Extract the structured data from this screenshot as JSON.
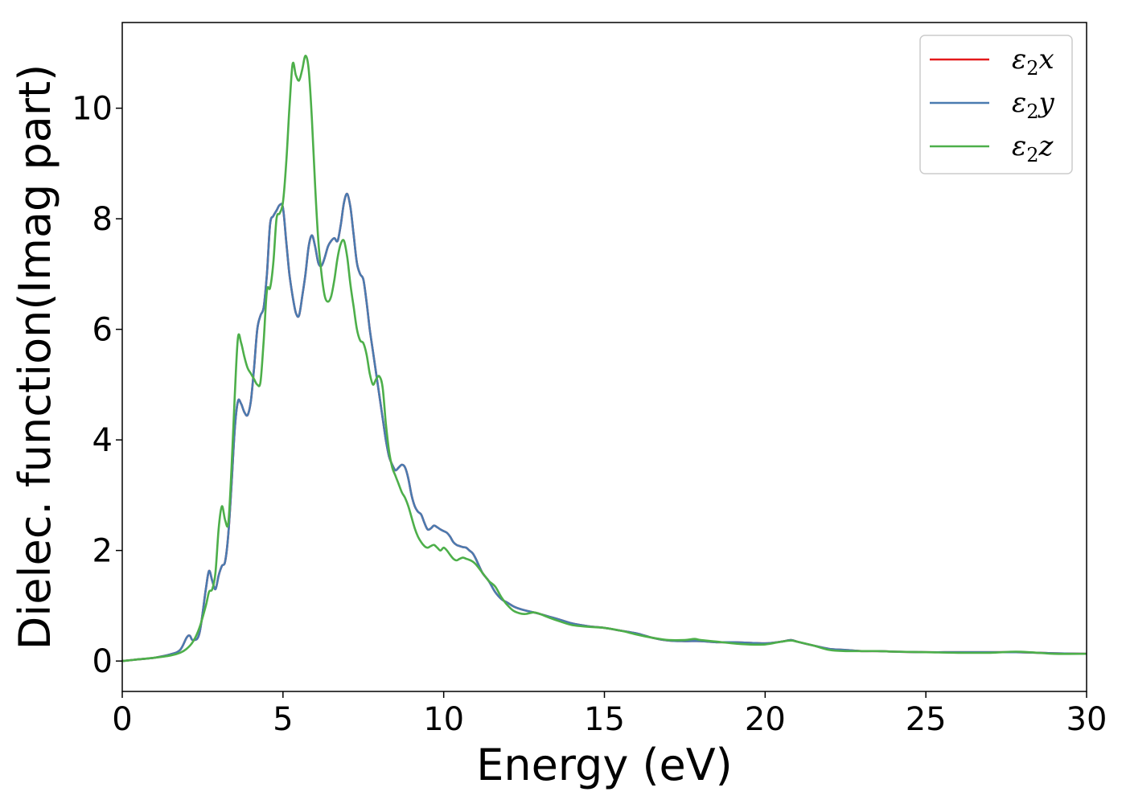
{
  "chart_data": {
    "type": "line",
    "title": "",
    "xlabel": "Energy (eV)",
    "ylabel": "Dielec. function(Imag part)",
    "xlim": [
      0,
      30
    ],
    "ylim": [
      -0.55,
      11.55
    ],
    "xticks": [
      0,
      5,
      10,
      15,
      20,
      25,
      30
    ],
    "yticks": [
      0,
      2,
      4,
      6,
      8,
      10
    ],
    "grid": false,
    "legend_position": "top-right",
    "series": [
      {
        "name": "ε₂x",
        "legend_base": "ε",
        "legend_sub": "2",
        "legend_var": "x",
        "color": "#e41a1c",
        "x": [
          0,
          0.5,
          1.0,
          1.5,
          1.8,
          2.0,
          2.1,
          2.2,
          2.4,
          2.6,
          2.7,
          2.8,
          2.9,
          3.0,
          3.1,
          3.2,
          3.3,
          3.4,
          3.5,
          3.6,
          3.7,
          3.8,
          3.9,
          4.0,
          4.1,
          4.2,
          4.3,
          4.4,
          4.5,
          4.6,
          4.7,
          4.8,
          4.9,
          5.0,
          5.1,
          5.2,
          5.3,
          5.4,
          5.5,
          5.6,
          5.7,
          5.8,
          5.9,
          6.0,
          6.1,
          6.2,
          6.3,
          6.4,
          6.5,
          6.6,
          6.7,
          6.8,
          6.9,
          7.0,
          7.1,
          7.2,
          7.3,
          7.4,
          7.5,
          7.6,
          7.7,
          7.8,
          7.9,
          8.0,
          8.1,
          8.2,
          8.3,
          8.4,
          8.5,
          8.6,
          8.7,
          8.8,
          8.9,
          9.0,
          9.1,
          9.2,
          9.3,
          9.4,
          9.5,
          9.6,
          9.7,
          9.8,
          9.9,
          10.0,
          10.1,
          10.2,
          10.3,
          10.4,
          10.5,
          10.6,
          10.7,
          10.8,
          10.9,
          11.0,
          11.2,
          11.4,
          11.6,
          11.8,
          12.0,
          12.2,
          12.5,
          12.8,
          13.0,
          13.3,
          13.6,
          14.0,
          14.5,
          15.0,
          15.5,
          16.0,
          16.5,
          17.0,
          17.5,
          18.0,
          18.5,
          19.0,
          19.5,
          20.0,
          20.5,
          20.8,
          21.0,
          21.5,
          22.0,
          22.5,
          23.0,
          23.5,
          24.0,
          25.0,
          26.0,
          27.0,
          27.8,
          28.5,
          29.0,
          30.0
        ],
        "values": [
          0,
          0.03,
          0.06,
          0.12,
          0.2,
          0.42,
          0.46,
          0.38,
          0.5,
          1.3,
          1.63,
          1.45,
          1.3,
          1.55,
          1.72,
          1.8,
          2.3,
          3.2,
          4.2,
          4.7,
          4.65,
          4.5,
          4.45,
          4.7,
          5.3,
          6.0,
          6.25,
          6.4,
          7.0,
          7.9,
          8.05,
          8.15,
          8.25,
          8.2,
          7.6,
          7.0,
          6.6,
          6.3,
          6.25,
          6.6,
          7.0,
          7.5,
          7.7,
          7.5,
          7.2,
          7.15,
          7.3,
          7.5,
          7.6,
          7.65,
          7.6,
          7.9,
          8.3,
          8.45,
          8.2,
          7.7,
          7.2,
          7.0,
          6.9,
          6.5,
          6.0,
          5.6,
          5.2,
          4.8,
          4.4,
          4.0,
          3.7,
          3.55,
          3.45,
          3.5,
          3.55,
          3.5,
          3.3,
          3.0,
          2.8,
          2.7,
          2.65,
          2.5,
          2.38,
          2.4,
          2.45,
          2.42,
          2.38,
          2.35,
          2.32,
          2.25,
          2.15,
          2.1,
          2.08,
          2.06,
          2.05,
          2.0,
          1.95,
          1.85,
          1.6,
          1.45,
          1.25,
          1.12,
          1.05,
          0.98,
          0.92,
          0.88,
          0.85,
          0.8,
          0.75,
          0.68,
          0.63,
          0.6,
          0.55,
          0.5,
          0.42,
          0.37,
          0.36,
          0.36,
          0.34,
          0.34,
          0.33,
          0.32,
          0.35,
          0.38,
          0.35,
          0.28,
          0.22,
          0.2,
          0.18,
          0.18,
          0.17,
          0.16,
          0.16,
          0.16,
          0.16,
          0.15,
          0.14,
          0.13
        ]
      },
      {
        "name": "ε₂y",
        "legend_base": "ε",
        "legend_sub": "2",
        "legend_var": "y",
        "color": "#4a7bb0",
        "x": [
          0,
          0.5,
          1.0,
          1.5,
          1.8,
          2.0,
          2.1,
          2.2,
          2.4,
          2.6,
          2.7,
          2.8,
          2.9,
          3.0,
          3.1,
          3.2,
          3.3,
          3.4,
          3.5,
          3.6,
          3.7,
          3.8,
          3.9,
          4.0,
          4.1,
          4.2,
          4.3,
          4.4,
          4.5,
          4.6,
          4.7,
          4.8,
          4.9,
          5.0,
          5.1,
          5.2,
          5.3,
          5.4,
          5.5,
          5.6,
          5.7,
          5.8,
          5.9,
          6.0,
          6.1,
          6.2,
          6.3,
          6.4,
          6.5,
          6.6,
          6.7,
          6.8,
          6.9,
          7.0,
          7.1,
          7.2,
          7.3,
          7.4,
          7.5,
          7.6,
          7.7,
          7.8,
          7.9,
          8.0,
          8.1,
          8.2,
          8.3,
          8.4,
          8.5,
          8.6,
          8.7,
          8.8,
          8.9,
          9.0,
          9.1,
          9.2,
          9.3,
          9.4,
          9.5,
          9.6,
          9.7,
          9.8,
          9.9,
          10.0,
          10.1,
          10.2,
          10.3,
          10.4,
          10.5,
          10.6,
          10.7,
          10.8,
          10.9,
          11.0,
          11.2,
          11.4,
          11.6,
          11.8,
          12.0,
          12.2,
          12.5,
          12.8,
          13.0,
          13.3,
          13.6,
          14.0,
          14.5,
          15.0,
          15.5,
          16.0,
          16.5,
          17.0,
          17.5,
          18.0,
          18.5,
          19.0,
          19.5,
          20.0,
          20.5,
          20.8,
          21.0,
          21.5,
          22.0,
          22.5,
          23.0,
          23.5,
          24.0,
          25.0,
          26.0,
          27.0,
          27.8,
          28.5,
          29.0,
          30.0
        ],
        "values": [
          0,
          0.03,
          0.06,
          0.12,
          0.2,
          0.42,
          0.46,
          0.38,
          0.5,
          1.3,
          1.63,
          1.45,
          1.3,
          1.55,
          1.72,
          1.8,
          2.3,
          3.2,
          4.2,
          4.7,
          4.65,
          4.5,
          4.45,
          4.7,
          5.3,
          6.0,
          6.25,
          6.4,
          7.0,
          7.9,
          8.05,
          8.15,
          8.25,
          8.2,
          7.6,
          7.0,
          6.6,
          6.3,
          6.25,
          6.6,
          7.0,
          7.5,
          7.7,
          7.5,
          7.2,
          7.15,
          7.3,
          7.5,
          7.6,
          7.65,
          7.6,
          7.9,
          8.3,
          8.45,
          8.2,
          7.7,
          7.2,
          7.0,
          6.9,
          6.5,
          6.0,
          5.6,
          5.2,
          4.8,
          4.4,
          4.0,
          3.7,
          3.55,
          3.45,
          3.5,
          3.55,
          3.5,
          3.3,
          3.0,
          2.8,
          2.7,
          2.65,
          2.5,
          2.38,
          2.4,
          2.45,
          2.42,
          2.38,
          2.35,
          2.32,
          2.25,
          2.15,
          2.1,
          2.08,
          2.06,
          2.05,
          2.0,
          1.95,
          1.85,
          1.6,
          1.45,
          1.25,
          1.12,
          1.05,
          0.98,
          0.92,
          0.88,
          0.85,
          0.8,
          0.75,
          0.68,
          0.63,
          0.6,
          0.55,
          0.5,
          0.42,
          0.37,
          0.36,
          0.36,
          0.34,
          0.34,
          0.33,
          0.32,
          0.35,
          0.38,
          0.35,
          0.28,
          0.22,
          0.2,
          0.18,
          0.18,
          0.17,
          0.16,
          0.16,
          0.16,
          0.16,
          0.15,
          0.14,
          0.13
        ]
      },
      {
        "name": "ε₂z",
        "legend_base": "ε",
        "legend_sub": "2",
        "legend_var": "z",
        "color": "#4daf4a",
        "x": [
          0,
          0.5,
          1.0,
          1.5,
          1.8,
          2.0,
          2.2,
          2.4,
          2.6,
          2.7,
          2.8,
          2.9,
          3.0,
          3.1,
          3.2,
          3.3,
          3.4,
          3.5,
          3.6,
          3.7,
          3.8,
          3.9,
          4.0,
          4.1,
          4.2,
          4.3,
          4.4,
          4.5,
          4.6,
          4.7,
          4.8,
          4.9,
          5.0,
          5.1,
          5.2,
          5.3,
          5.4,
          5.5,
          5.6,
          5.7,
          5.8,
          5.9,
          6.0,
          6.1,
          6.2,
          6.3,
          6.4,
          6.5,
          6.6,
          6.7,
          6.8,
          6.9,
          7.0,
          7.1,
          7.2,
          7.3,
          7.4,
          7.5,
          7.6,
          7.7,
          7.8,
          7.9,
          8.0,
          8.1,
          8.2,
          8.3,
          8.4,
          8.5,
          8.6,
          8.7,
          8.8,
          8.9,
          9.0,
          9.1,
          9.2,
          9.3,
          9.4,
          9.5,
          9.6,
          9.7,
          9.8,
          9.9,
          10.0,
          10.1,
          10.2,
          10.3,
          10.4,
          10.5,
          10.6,
          10.7,
          10.8,
          10.9,
          11.0,
          11.2,
          11.4,
          11.6,
          11.8,
          12.0,
          12.2,
          12.5,
          12.8,
          13.0,
          13.3,
          13.6,
          14.0,
          14.5,
          15.0,
          15.5,
          16.0,
          16.5,
          17.0,
          17.5,
          17.8,
          18.0,
          18.5,
          19.0,
          19.5,
          20.0,
          20.5,
          20.8,
          21.0,
          21.5,
          22.0,
          22.5,
          23.0,
          23.5,
          24.0,
          25.0,
          26.0,
          27.0,
          27.8,
          28.5,
          29.0,
          30.0
        ],
        "values": [
          0,
          0.03,
          0.06,
          0.1,
          0.15,
          0.22,
          0.35,
          0.6,
          1.0,
          1.25,
          1.3,
          1.6,
          2.4,
          2.8,
          2.55,
          2.5,
          3.5,
          4.8,
          5.85,
          5.75,
          5.5,
          5.3,
          5.2,
          5.1,
          5.0,
          5.05,
          5.8,
          6.7,
          6.75,
          7.2,
          8.0,
          8.1,
          8.3,
          9.0,
          10.0,
          10.8,
          10.6,
          10.5,
          10.7,
          10.95,
          10.7,
          9.8,
          8.6,
          7.6,
          7.0,
          6.6,
          6.5,
          6.6,
          6.9,
          7.3,
          7.55,
          7.6,
          7.3,
          6.8,
          6.4,
          6.0,
          5.8,
          5.75,
          5.55,
          5.2,
          5.0,
          5.1,
          5.15,
          4.95,
          4.3,
          3.8,
          3.5,
          3.35,
          3.2,
          3.05,
          2.95,
          2.8,
          2.6,
          2.4,
          2.25,
          2.15,
          2.08,
          2.05,
          2.08,
          2.1,
          2.05,
          2.0,
          2.05,
          2.0,
          1.92,
          1.85,
          1.82,
          1.85,
          1.87,
          1.85,
          1.83,
          1.8,
          1.75,
          1.6,
          1.45,
          1.35,
          1.15,
          1.0,
          0.9,
          0.85,
          0.88,
          0.85,
          0.78,
          0.72,
          0.65,
          0.62,
          0.6,
          0.55,
          0.48,
          0.42,
          0.38,
          0.38,
          0.4,
          0.38,
          0.35,
          0.32,
          0.3,
          0.3,
          0.35,
          0.37,
          0.35,
          0.28,
          0.2,
          0.18,
          0.18,
          0.18,
          0.17,
          0.16,
          0.15,
          0.15,
          0.17,
          0.15,
          0.13,
          0.13
        ]
      }
    ]
  }
}
